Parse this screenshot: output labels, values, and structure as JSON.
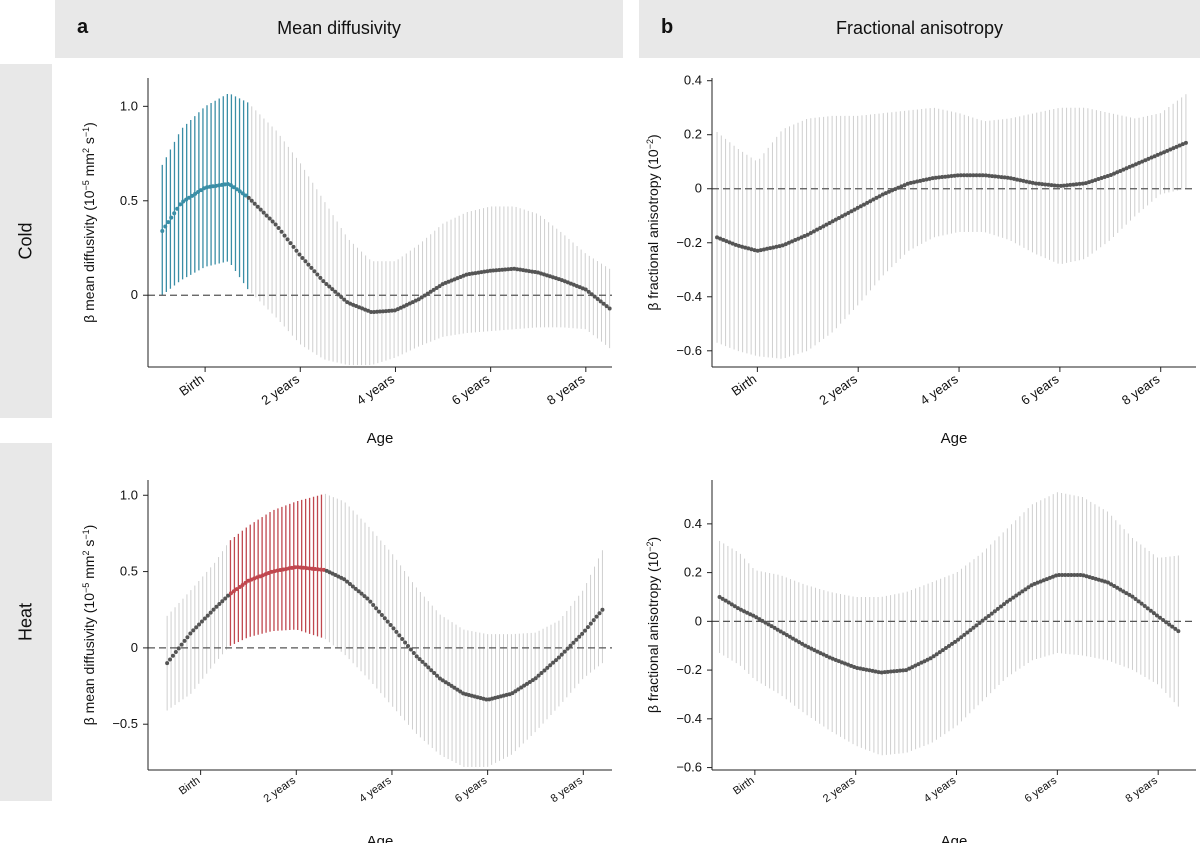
{
  "columns": [
    {
      "letter": "a",
      "title": "Mean diffusivity"
    },
    {
      "letter": "b",
      "title": "Fractional anisotropy"
    }
  ],
  "rows": [
    "Cold",
    "Heat"
  ],
  "chart_data": [
    {
      "id": "cold-md",
      "type": "line",
      "column": "a",
      "row": "Cold",
      "xlabel": "Age",
      "ylabel_parts": [
        "β mean diffusivity (10",
        "−5",
        " mm",
        "2",
        " s",
        "−1",
        ")"
      ],
      "xlim": [
        -1.2,
        8.55
      ],
      "ylim": [
        -0.38,
        1.15
      ],
      "xticks": [
        0,
        2,
        4,
        6,
        8
      ],
      "xtick_labels": [
        "Birth",
        "2 years",
        "4 years",
        "6 years",
        "8 years"
      ],
      "yticks": [
        0,
        0.5,
        1.0
      ],
      "ytick_labels": [
        "0",
        "0.5",
        "1.0"
      ],
      "highlight_color": "#3a8ea6",
      "highlight_range": [
        -0.9,
        0.9
      ],
      "x": [
        -0.9,
        -0.5,
        0.0,
        0.5,
        0.9,
        1.5,
        2.0,
        2.5,
        3.0,
        3.5,
        4.0,
        4.5,
        5.0,
        5.5,
        6.0,
        6.5,
        7.0,
        7.5,
        8.0,
        8.5
      ],
      "y": [
        0.34,
        0.49,
        0.57,
        0.59,
        0.52,
        0.37,
        0.21,
        0.07,
        -0.04,
        -0.09,
        -0.08,
        -0.02,
        0.06,
        0.11,
        0.13,
        0.14,
        0.12,
        0.08,
        0.03,
        -0.07
      ],
      "ci_low": [
        0.0,
        0.08,
        0.15,
        0.18,
        0.03,
        -0.12,
        -0.26,
        -0.34,
        -0.37,
        -0.37,
        -0.33,
        -0.27,
        -0.22,
        -0.2,
        -0.19,
        -0.18,
        -0.17,
        -0.17,
        -0.18,
        -0.28
      ],
      "ci_high": [
        0.69,
        0.88,
        1.0,
        1.07,
        1.02,
        0.87,
        0.7,
        0.5,
        0.3,
        0.18,
        0.18,
        0.27,
        0.38,
        0.44,
        0.47,
        0.47,
        0.43,
        0.33,
        0.22,
        0.14
      ]
    },
    {
      "id": "cold-fa",
      "type": "line",
      "column": "b",
      "row": "Cold",
      "xlabel": "Age",
      "ylabel_parts": [
        "β fractional anisotropy (10",
        "−2",
        ")"
      ],
      "xlim": [
        -0.9,
        8.7
      ],
      "ylim": [
        -0.66,
        0.41
      ],
      "xticks": [
        0,
        2,
        4,
        6,
        8
      ],
      "xtick_labels": [
        "Birth",
        "2 years",
        "4 years",
        "6 years",
        "8 years"
      ],
      "yticks": [
        -0.6,
        -0.4,
        -0.2,
        0,
        0.2,
        0.4
      ],
      "ytick_labels": [
        "−0.6",
        "−0.4",
        "−0.2",
        "0",
        "0.2",
        "0.4"
      ],
      "x": [
        -0.8,
        -0.4,
        0.0,
        0.5,
        1.0,
        1.5,
        2.0,
        2.5,
        3.0,
        3.5,
        4.0,
        4.5,
        5.0,
        5.5,
        6.0,
        6.5,
        7.0,
        7.5,
        8.0,
        8.5
      ],
      "y": [
        -0.18,
        -0.21,
        -0.23,
        -0.21,
        -0.17,
        -0.12,
        -0.07,
        -0.02,
        0.02,
        0.04,
        0.05,
        0.05,
        0.04,
        0.02,
        0.01,
        0.02,
        0.05,
        0.09,
        0.13,
        0.17
      ],
      "ci_low": [
        -0.57,
        -0.6,
        -0.62,
        -0.63,
        -0.6,
        -0.53,
        -0.43,
        -0.32,
        -0.23,
        -0.18,
        -0.16,
        -0.16,
        -0.19,
        -0.24,
        -0.28,
        -0.26,
        -0.19,
        -0.1,
        -0.02,
        0.0
      ],
      "ci_high": [
        0.21,
        0.15,
        0.1,
        0.22,
        0.26,
        0.27,
        0.27,
        0.28,
        0.29,
        0.3,
        0.28,
        0.25,
        0.26,
        0.28,
        0.3,
        0.3,
        0.28,
        0.26,
        0.28,
        0.35
      ]
    },
    {
      "id": "heat-md",
      "type": "line",
      "column": "a",
      "row": "Heat",
      "xlabel": "Age",
      "ylabel_parts": [
        "β mean diffusivity (10",
        "−5",
        " mm",
        "2",
        " s",
        "−1",
        ")"
      ],
      "xlim": [
        -1.1,
        8.6
      ],
      "ylim": [
        -0.8,
        1.1
      ],
      "xticks": [
        0,
        2,
        4,
        6,
        8
      ],
      "xtick_labels": [
        "Birth",
        "2 years",
        "4 years",
        "6 years",
        "8 years"
      ],
      "yticks": [
        -0.5,
        0,
        0.5,
        1.0
      ],
      "ytick_labels": [
        "−0.5",
        "0",
        "0.5",
        "1.0"
      ],
      "highlight_color": "#c0474e",
      "highlight_range": [
        0.6,
        2.6
      ],
      "x": [
        -0.7,
        -0.2,
        0.3,
        0.6,
        1.0,
        1.5,
        2.0,
        2.6,
        3.0,
        3.5,
        4.0,
        4.5,
        5.0,
        5.5,
        6.0,
        6.5,
        7.0,
        7.5,
        8.0,
        8.4
      ],
      "y": [
        -0.1,
        0.1,
        0.26,
        0.35,
        0.44,
        0.5,
        0.53,
        0.51,
        0.45,
        0.32,
        0.14,
        -0.05,
        -0.2,
        -0.3,
        -0.34,
        -0.3,
        -0.2,
        -0.06,
        0.1,
        0.25
      ],
      "ci_low": [
        -0.41,
        -0.3,
        -0.1,
        0.01,
        0.07,
        0.11,
        0.12,
        0.06,
        -0.04,
        -0.2,
        -0.38,
        -0.56,
        -0.7,
        -0.78,
        -0.78,
        -0.7,
        -0.55,
        -0.38,
        -0.2,
        -0.1
      ],
      "ci_high": [
        0.21,
        0.38,
        0.56,
        0.7,
        0.8,
        0.9,
        0.96,
        1.01,
        0.96,
        0.8,
        0.62,
        0.4,
        0.22,
        0.12,
        0.09,
        0.09,
        0.1,
        0.18,
        0.38,
        0.64
      ]
    },
    {
      "id": "heat-fa",
      "type": "line",
      "column": "b",
      "row": "Heat",
      "xlabel": "Age",
      "ylabel_parts": [
        "β fractional anisotropy (10",
        "−2",
        ")"
      ],
      "xlim": [
        -0.85,
        8.75
      ],
      "ylim": [
        -0.61,
        0.58
      ],
      "xticks": [
        0,
        2,
        4,
        6,
        8
      ],
      "xtick_labels": [
        "Birth",
        "2 years",
        "4 years",
        "6 years",
        "8 years"
      ],
      "yticks": [
        -0.6,
        -0.4,
        -0.2,
        0,
        0.2,
        0.4
      ],
      "ytick_labels": [
        "−0.6",
        "−0.4",
        "−0.2",
        "0",
        "0.2",
        "0.4"
      ],
      "x": [
        -0.7,
        -0.3,
        0.0,
        0.5,
        1.0,
        1.5,
        2.0,
        2.5,
        3.0,
        3.5,
        4.0,
        4.5,
        5.0,
        5.5,
        6.0,
        6.5,
        7.0,
        7.5,
        8.0,
        8.4
      ],
      "y": [
        0.1,
        0.05,
        0.02,
        -0.04,
        -0.1,
        -0.15,
        -0.19,
        -0.21,
        -0.2,
        -0.15,
        -0.08,
        0.0,
        0.08,
        0.15,
        0.19,
        0.19,
        0.16,
        0.1,
        0.02,
        -0.04
      ],
      "ci_low": [
        -0.13,
        -0.18,
        -0.24,
        -0.3,
        -0.38,
        -0.45,
        -0.51,
        -0.55,
        -0.54,
        -0.5,
        -0.43,
        -0.33,
        -0.23,
        -0.16,
        -0.13,
        -0.14,
        -0.16,
        -0.2,
        -0.26,
        -0.35
      ],
      "ci_high": [
        0.33,
        0.28,
        0.21,
        0.19,
        0.15,
        0.12,
        0.1,
        0.1,
        0.12,
        0.16,
        0.2,
        0.28,
        0.38,
        0.48,
        0.53,
        0.51,
        0.45,
        0.34,
        0.26,
        0.27
      ]
    }
  ]
}
